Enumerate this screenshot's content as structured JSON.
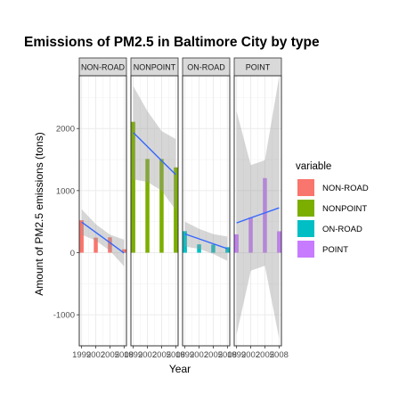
{
  "chart_data": {
    "type": "bar",
    "title": "Emissions of PM2.5 in Baltimore City by type",
    "xlabel": "Year",
    "ylabel": "Amount of PM2.5 emissions (tons)",
    "ylim": [
      -1500,
      2850
    ],
    "yticks": [
      -1000,
      0,
      1000,
      2000
    ],
    "x": [
      1999,
      2002,
      2005,
      2008
    ],
    "x_tick_labels": [
      "1999",
      "2002",
      "2005",
      "2008"
    ],
    "grid": true,
    "facets": true,
    "smooth": "linear fit with confidence band",
    "legend": {
      "title": "variable",
      "position": "right"
    },
    "series": [
      {
        "name": "NON-ROAD",
        "strip_label": "NON-ROAD",
        "color": "#F8766D",
        "values": [
          522,
          242,
          248,
          55
        ],
        "fit": [
          493,
          327,
          161,
          -5
        ],
        "band": [
          [
            290,
            700
          ],
          [
            195,
            460
          ],
          [
            30,
            290
          ],
          [
            -220,
            210
          ]
        ]
      },
      {
        "name": "NONPOINT",
        "strip_label": "NONPOINT",
        "color": "#7CAE00",
        "values": [
          2108,
          1510,
          1510,
          1374
        ],
        "fit": [
          1934,
          1708,
          1483,
          1258
        ],
        "band": [
          [
            2680,
            1180
          ],
          [
            2280,
            1140
          ],
          [
            1960,
            1000
          ],
          [
            1830,
            690
          ]
        ]
      },
      {
        "name": "ON-ROAD",
        "strip_label": "ON-ROAD",
        "color": "#00BFC4",
        "values": [
          347,
          134,
          130,
          88
        ],
        "fit": [
          302,
          223,
          144,
          65
        ],
        "band": [
          [
            100,
            500
          ],
          [
            60,
            385
          ],
          [
            -20,
            300
          ],
          [
            -130,
            260
          ]
        ]
      },
      {
        "name": "POINT",
        "strip_label": "POINT",
        "color": "#C77CFF",
        "values": [
          296,
          569,
          1202,
          345
        ],
        "fit": [
          480,
          561,
          641,
          722
        ],
        "band": [
          [
            -1320,
            2280
          ],
          [
            -290,
            1410
          ],
          [
            -210,
            1490
          ],
          [
            -1380,
            2830
          ]
        ]
      }
    ]
  }
}
